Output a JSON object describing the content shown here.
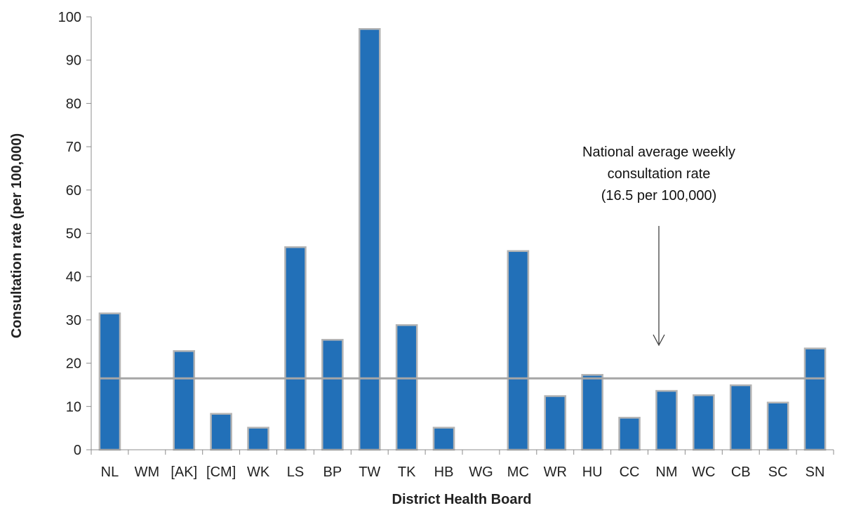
{
  "chart_data": {
    "type": "bar",
    "xlabel": "District Health Board",
    "ylabel": "Consultation rate (per 100,000)",
    "ylim": [
      0,
      100
    ],
    "yticks": [
      0,
      10,
      20,
      30,
      40,
      50,
      60,
      70,
      80,
      90,
      100
    ],
    "categories": [
      "NL",
      "WM",
      "[AK]",
      "[CM]",
      "WK",
      "LS",
      "BP",
      "TW",
      "TK",
      "HB",
      "WG",
      "MC",
      "WR",
      "HU",
      "CC",
      "NM",
      "WC",
      "CB",
      "SC",
      "SN"
    ],
    "values": [
      31.5,
      0,
      22.8,
      8.3,
      5.1,
      46.8,
      25.4,
      97.2,
      28.8,
      5.1,
      0,
      45.9,
      12.4,
      17.3,
      7.4,
      13.6,
      12.6,
      14.9,
      10.9,
      23.4
    ],
    "reference_line": {
      "value": 16.5
    },
    "annotation": {
      "lines": [
        "National average weekly",
        "consultation rate",
        "(16.5 per 100,000)"
      ]
    },
    "colors": {
      "bar": "#2270b8",
      "bar_outline": "#b4b4b4",
      "reference_line": "#a6a6a6",
      "axis": "#8c8c8c"
    },
    "grid": false,
    "legend": "none"
  }
}
